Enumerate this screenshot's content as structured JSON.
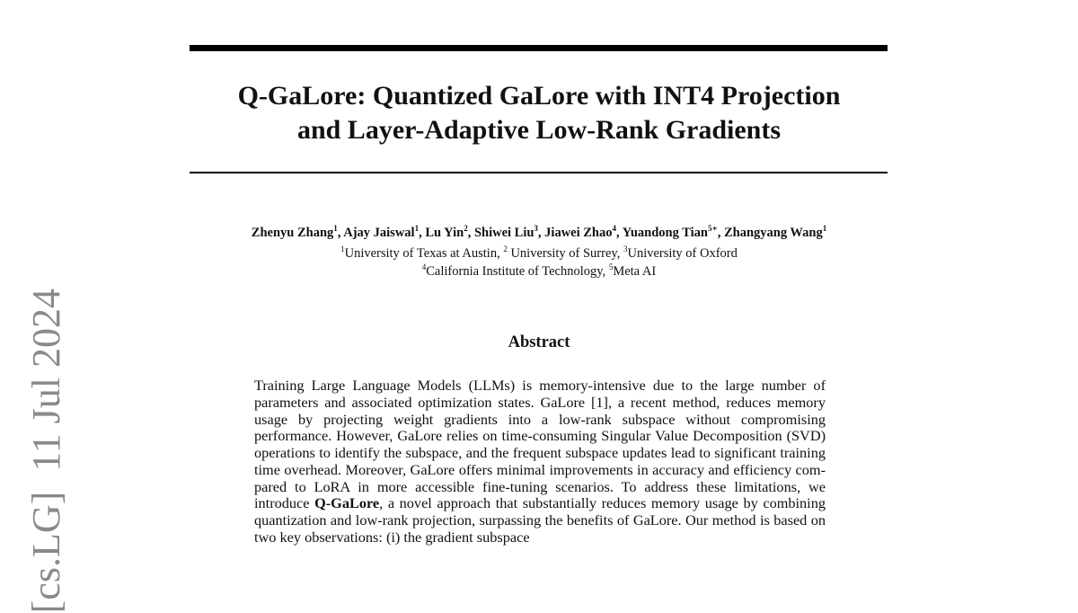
{
  "title_lines": [
    "Q-GaLore: Quantized GaLore with INT4 Projection",
    "and Layer-Adaptive Low-Rank Gradients"
  ],
  "authors": [
    {
      "name": "Zhenyu Zhang",
      "aff": "1"
    },
    {
      "name": "Ajay Jaiswal",
      "aff": "1"
    },
    {
      "name": "Lu Yin",
      "aff": "2"
    },
    {
      "name": "Shiwei Liu",
      "aff": "3"
    },
    {
      "name": "Jiawei Zhao",
      "aff": "4"
    },
    {
      "name": "Yuandong Tian",
      "aff": "5∗"
    },
    {
      "name": "Zhangyang Wang",
      "aff": "1"
    }
  ],
  "affiliations": [
    {
      "num": "1",
      "name": "University of Texas at Austin,"
    },
    {
      "num": "2",
      "name": " University of Surrey,"
    },
    {
      "num": "3",
      "name": "University of Oxford"
    },
    {
      "num": "4",
      "name": "California Institute of Technology,"
    },
    {
      "num": "5",
      "name": "Meta AI"
    }
  ],
  "abstract_heading": "Abstract",
  "abstract": {
    "before_bold": "Training Large Language Models (LLMs) is memory-intensive due to the large number of parameters and associated optimization states. GaLore [1], a recent method, reduces memory usage by projecting weight gradients into a low-rank subspace without compromising performance. However, GaLore relies on time-consuming Singular Value Decomposition (SVD) operations to identify the sub­space, and the frequent subspace updates lead to significant training time overhead. Moreover, GaLore offers minimal improvements in accuracy and efficiency com­pared to LoRA in more accessible fine-tuning scenarios. To address these limita­tions, we introduce ",
    "bold": "Q-GaLore",
    "after_bold": ", a novel approach that substantially reduces memory usage by combining quantization and low-rank projection, surpassing the benefits of GaLore. Our method is based on two key observations: (i) the gradient subspace"
  },
  "arxiv_stamp": "[cs.LG]  11 Jul 2024"
}
